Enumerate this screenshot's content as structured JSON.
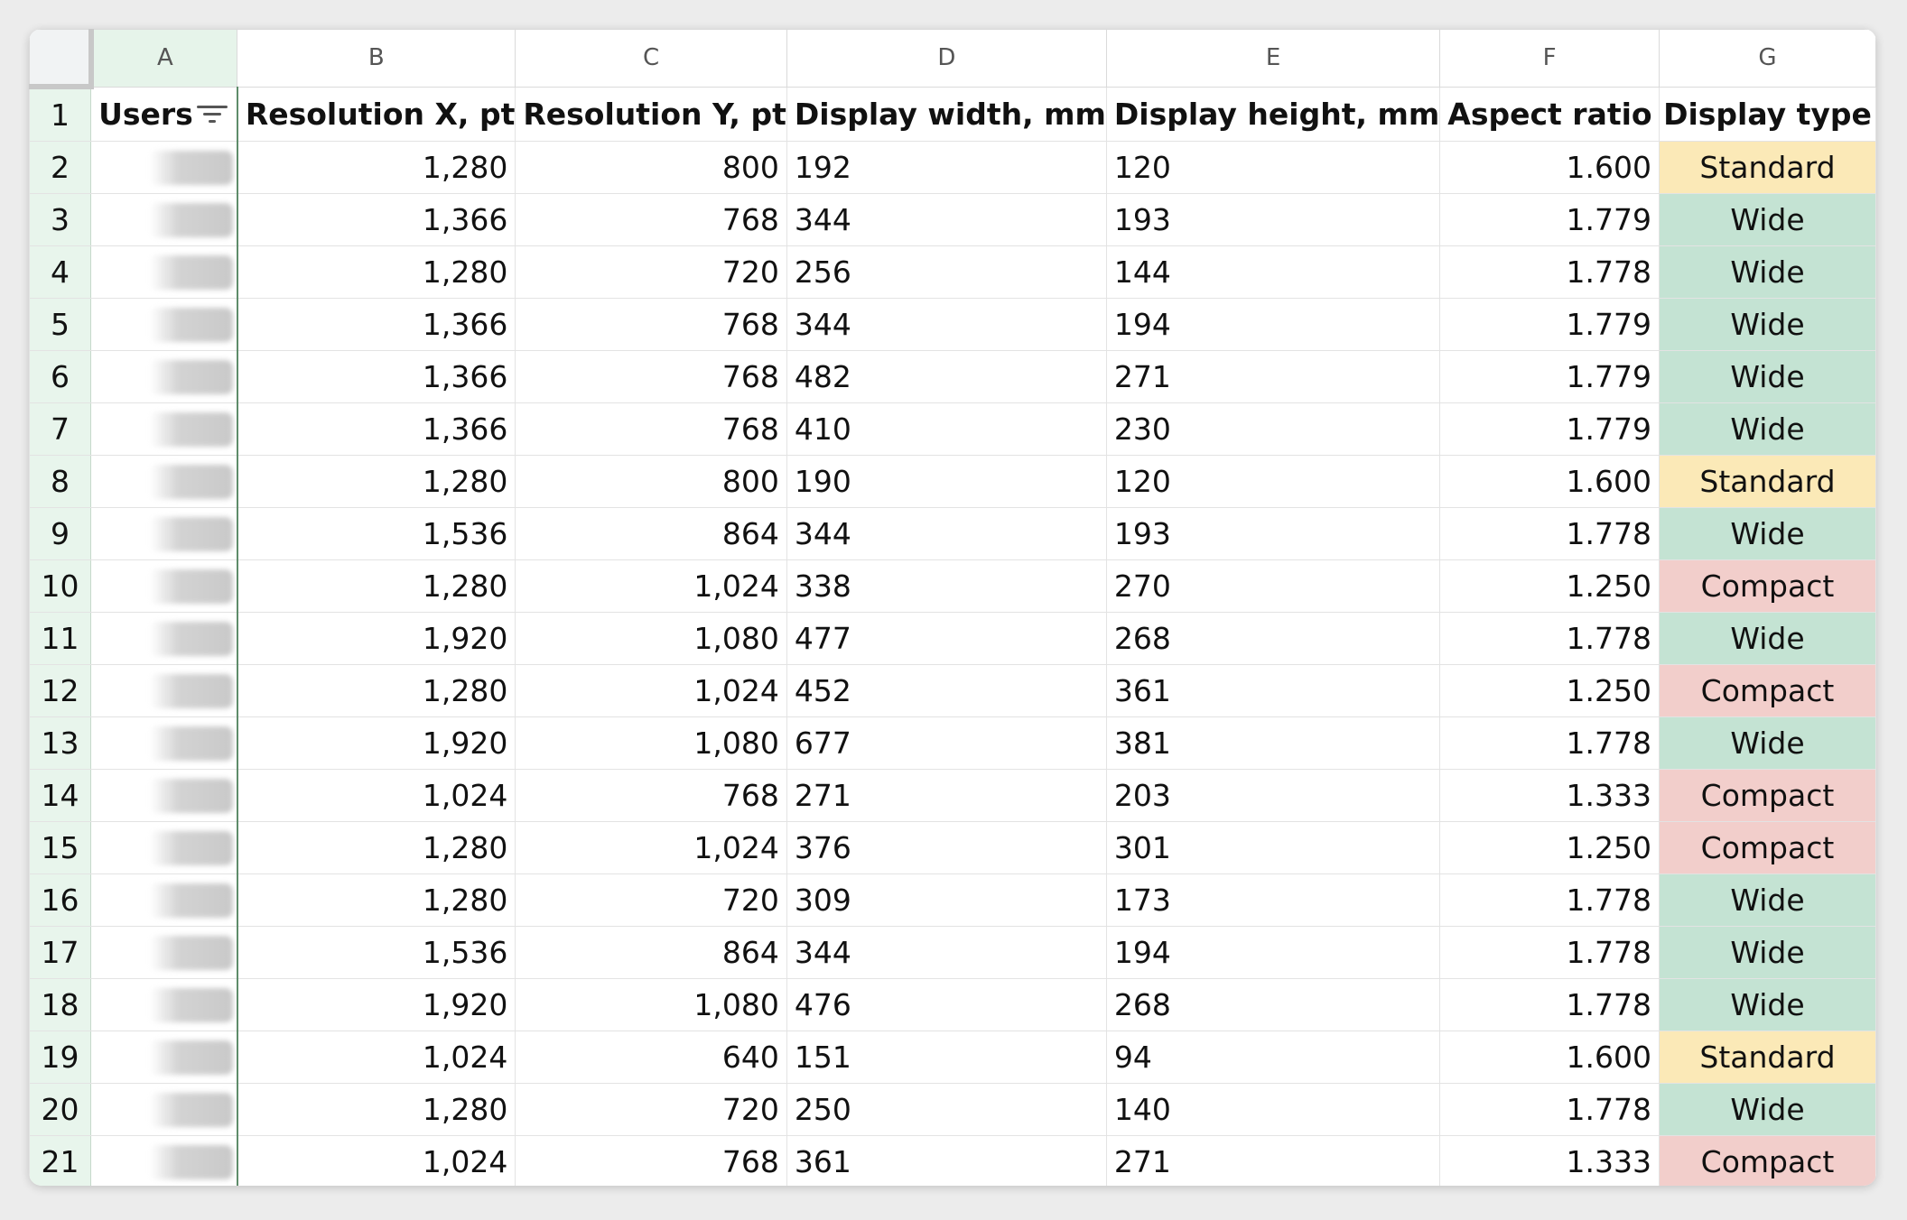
{
  "columns": [
    "A",
    "B",
    "C",
    "D",
    "E",
    "F",
    "G"
  ],
  "header_row_number": "1",
  "headers": [
    "Users",
    "Resolution X, pt",
    "Resolution Y, pt",
    "Display width, mm",
    "Display height, mm",
    "Aspect ratio",
    "Display type"
  ],
  "colors": {
    "Standard": "#fbe9b7",
    "Wide": "#c4e3d3",
    "Compact": "#f2cecb",
    "row_header_bg": "#e8f5ec"
  },
  "icons": {
    "users_filter": "filter-icon"
  },
  "rows": [
    {
      "n": "2",
      "rx": "1,280",
      "ry": "800",
      "w": "192",
      "h": "120",
      "ar": "1.600",
      "type": "Standard"
    },
    {
      "n": "3",
      "rx": "1,366",
      "ry": "768",
      "w": "344",
      "h": "193",
      "ar": "1.779",
      "type": "Wide"
    },
    {
      "n": "4",
      "rx": "1,280",
      "ry": "720",
      "w": "256",
      "h": "144",
      "ar": "1.778",
      "type": "Wide"
    },
    {
      "n": "5",
      "rx": "1,366",
      "ry": "768",
      "w": "344",
      "h": "194",
      "ar": "1.779",
      "type": "Wide"
    },
    {
      "n": "6",
      "rx": "1,366",
      "ry": "768",
      "w": "482",
      "h": "271",
      "ar": "1.779",
      "type": "Wide"
    },
    {
      "n": "7",
      "rx": "1,366",
      "ry": "768",
      "w": "410",
      "h": "230",
      "ar": "1.779",
      "type": "Wide"
    },
    {
      "n": "8",
      "rx": "1,280",
      "ry": "800",
      "w": "190",
      "h": "120",
      "ar": "1.600",
      "type": "Standard"
    },
    {
      "n": "9",
      "rx": "1,536",
      "ry": "864",
      "w": "344",
      "h": "193",
      "ar": "1.778",
      "type": "Wide"
    },
    {
      "n": "10",
      "rx": "1,280",
      "ry": "1,024",
      "w": "338",
      "h": "270",
      "ar": "1.250",
      "type": "Compact"
    },
    {
      "n": "11",
      "rx": "1,920",
      "ry": "1,080",
      "w": "477",
      "h": "268",
      "ar": "1.778",
      "type": "Wide"
    },
    {
      "n": "12",
      "rx": "1,280",
      "ry": "1,024",
      "w": "452",
      "h": "361",
      "ar": "1.250",
      "type": "Compact"
    },
    {
      "n": "13",
      "rx": "1,920",
      "ry": "1,080",
      "w": "677",
      "h": "381",
      "ar": "1.778",
      "type": "Wide"
    },
    {
      "n": "14",
      "rx": "1,024",
      "ry": "768",
      "w": "271",
      "h": "203",
      "ar": "1.333",
      "type": "Compact"
    },
    {
      "n": "15",
      "rx": "1,280",
      "ry": "1,024",
      "w": "376",
      "h": "301",
      "ar": "1.250",
      "type": "Compact"
    },
    {
      "n": "16",
      "rx": "1,280",
      "ry": "720",
      "w": "309",
      "h": "173",
      "ar": "1.778",
      "type": "Wide"
    },
    {
      "n": "17",
      "rx": "1,536",
      "ry": "864",
      "w": "344",
      "h": "194",
      "ar": "1.778",
      "type": "Wide"
    },
    {
      "n": "18",
      "rx": "1,920",
      "ry": "1,080",
      "w": "476",
      "h": "268",
      "ar": "1.778",
      "type": "Wide"
    },
    {
      "n": "19",
      "rx": "1,024",
      "ry": "640",
      "w": "151",
      "h": "94",
      "ar": "1.600",
      "type": "Standard"
    },
    {
      "n": "20",
      "rx": "1,280",
      "ry": "720",
      "w": "250",
      "h": "140",
      "ar": "1.778",
      "type": "Wide"
    },
    {
      "n": "21",
      "rx": "1,024",
      "ry": "768",
      "w": "361",
      "h": "271",
      "ar": "1.333",
      "type": "Compact"
    }
  ]
}
